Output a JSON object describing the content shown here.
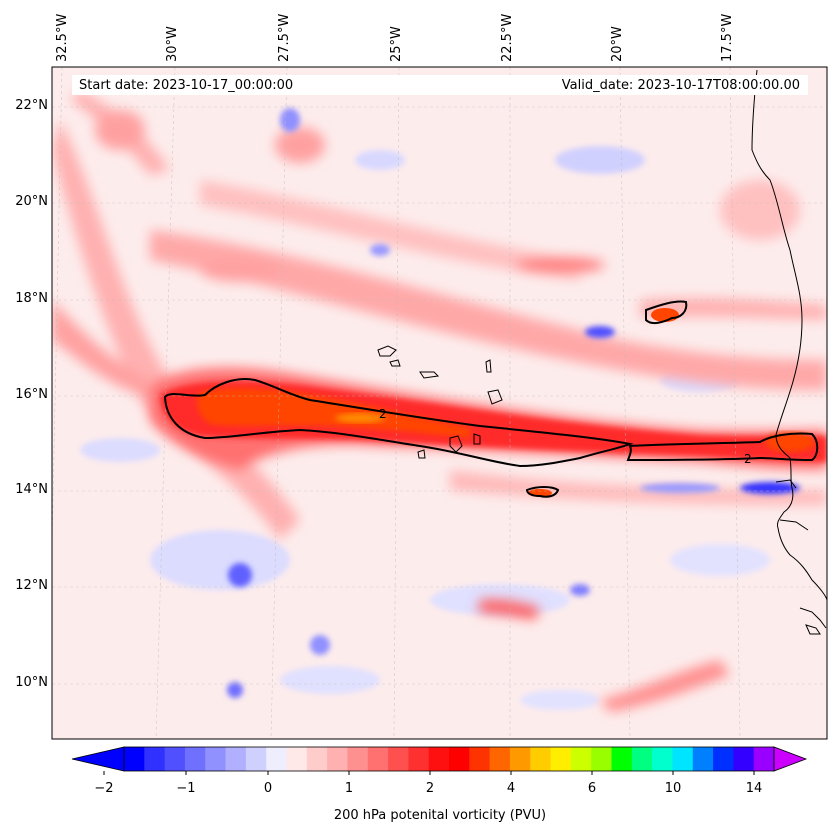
{
  "header": {
    "start_date": "Start date: 2023-10-17_00:00:00",
    "valid_date": "Valid_date: 2023-10-17T08:00:00.00"
  },
  "map": {
    "lon_labels": [
      "32.5°W",
      "30°W",
      "27.5°W",
      "25°W",
      "22.5°W",
      "20°W",
      "17.5°W"
    ],
    "lat_labels": [
      "22°N",
      "20°N",
      "18°N",
      "16°N",
      "14°N",
      "12°N",
      "10°N"
    ],
    "contour_label": "2",
    "field": "200 hPa potential vorticity",
    "colors": {
      "background": "#fdecec",
      "light_red": "#ffb3b3",
      "medium_red": "#ff6060",
      "strong_red": "#ff2a2a",
      "orange": "#ff4500",
      "blue": "#3333ff",
      "light_blue": "#c8c8ff"
    }
  },
  "colorbar": {
    "ticks": [
      "−2",
      "−1",
      "0",
      "1",
      "2",
      "4",
      "6",
      "10",
      "14"
    ],
    "label": "200 hPa potenital vorticity (PVU)",
    "colors": [
      "#0000ff",
      "#3030ff",
      "#5050ff",
      "#7070ff",
      "#9090ff",
      "#b0b0ff",
      "#d0d0ff",
      "#eeeeff",
      "#ffe8e8",
      "#ffcccc",
      "#ffb0b0",
      "#ff9090",
      "#ff7070",
      "#ff5050",
      "#ff3030",
      "#ff1010",
      "#ff0000",
      "#ff3300",
      "#ff6600",
      "#ff9900",
      "#ffcc00",
      "#ffee00",
      "#ccff00",
      "#99ff00",
      "#00ff00",
      "#00ff80",
      "#00ffcc",
      "#00e5ff",
      "#0080ff",
      "#0030ff",
      "#3300ff",
      "#9900ff"
    ],
    "extend_low": "#0000ff",
    "extend_high": "#cc00ff"
  }
}
